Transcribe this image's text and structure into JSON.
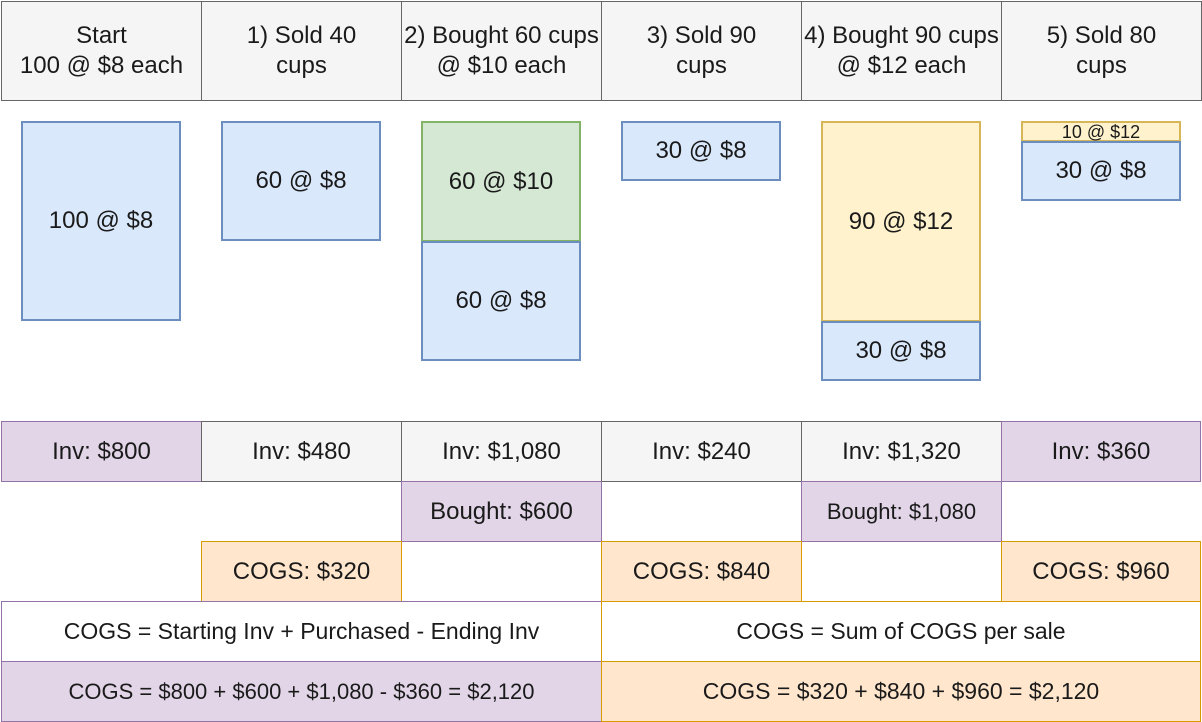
{
  "headers": [
    "Start\n100 @ $8 each",
    "1) Sold 40 cups",
    "2) Bought 60 cups @ $10 each",
    "3) Sold 90 cups",
    "4) Bought 90 cups @ $12 each",
    "5) Sold 80 cups"
  ],
  "blocks": {
    "start": "100 @ $8",
    "sold40": "60 @ $8",
    "bought60_new": "60 @ $10",
    "bought60_old": "60 @ $8",
    "sold90": "30 @ $8",
    "bought90_new": "90 @ $12",
    "bought90_old": "30 @ $8",
    "sold80_new": "10 @ $12",
    "sold80_old": "30 @ $8"
  },
  "inventory": [
    "Inv: $800",
    "Inv: $480",
    "Inv: $1,080",
    "Inv: $240",
    "Inv: $1,320",
    "Inv: $360"
  ],
  "bought": {
    "step2": "Bought: $600",
    "step4": "Bought: $1,080"
  },
  "cogs": {
    "step1": "COGS: $320",
    "step3": "COGS: $840",
    "step5": "COGS: $960"
  },
  "formulas": {
    "left_definition": "COGS = Starting Inv + Purchased - Ending Inv",
    "right_definition": "COGS = Sum of COGS per sale",
    "left_calc": "COGS = $800 + $600 + $1,080 - $360 = $2,120",
    "right_calc": "COGS = $320 + $840 + $960 = $2,120"
  },
  "colors": {
    "blue_fill": "#dae8fc",
    "green_fill": "#d5e8d4",
    "yellow_fill": "#fff2cc",
    "purple_fill": "#e1d5e7",
    "orange_fill": "#ffe6cc",
    "gray_fill": "#f5f5f5"
  }
}
